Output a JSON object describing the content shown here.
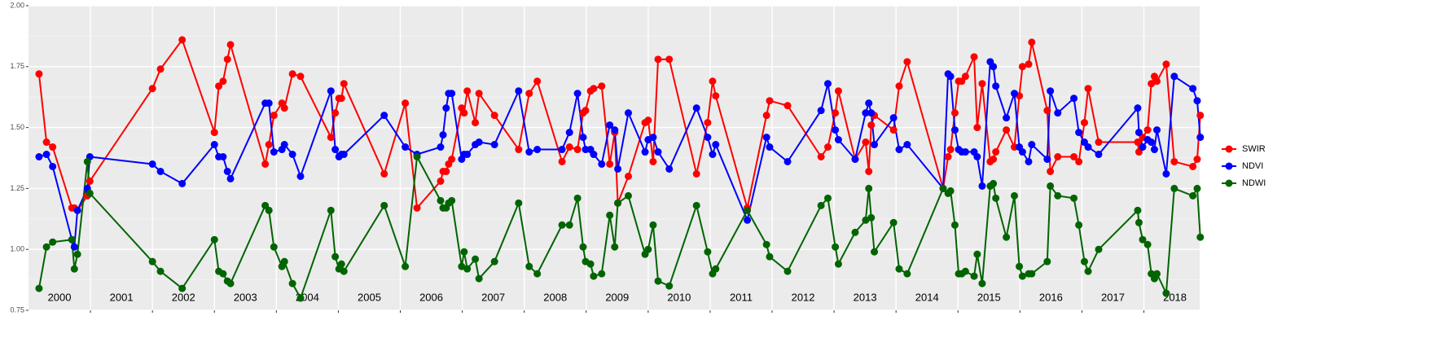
{
  "chart_data": {
    "type": "line",
    "x": [
      2000.17,
      2000.29,
      2000.39,
      2000.7,
      2000.74,
      2000.79,
      2000.95,
      2000.99,
      2002.0,
      2002.13,
      2002.48,
      2003.0,
      2003.07,
      2003.14,
      2003.21,
      2003.26,
      2003.82,
      2003.88,
      2003.96,
      2004.09,
      2004.13,
      2004.26,
      2004.39,
      2004.88,
      2004.95,
      2005.01,
      2005.05,
      2005.09,
      2005.74,
      2006.08,
      2006.27,
      2006.65,
      2006.69,
      2006.74,
      2006.78,
      2006.83,
      2006.99,
      2007.03,
      2007.08,
      2007.21,
      2007.27,
      2007.52,
      2007.91,
      2008.08,
      2008.21,
      2008.61,
      2008.73,
      2008.86,
      2008.95,
      2008.99,
      2009.07,
      2009.12,
      2009.25,
      2009.38,
      2009.46,
      2009.51,
      2009.68,
      2009.95,
      2010.0,
      2010.08,
      2010.16,
      2010.34,
      2010.78,
      2010.96,
      2011.04,
      2011.09,
      2011.6,
      2011.91,
      2011.96,
      2012.25,
      2012.79,
      2012.9,
      2013.02,
      2013.07,
      2013.34,
      2013.51,
      2013.56,
      2013.6,
      2013.65,
      2013.96,
      2014.05,
      2014.18,
      2014.76,
      2014.84,
      2014.88,
      2014.95,
      2015.01,
      2015.06,
      2015.12,
      2015.26,
      2015.31,
      2015.39,
      2015.52,
      2015.57,
      2015.61,
      2015.78,
      2015.91,
      2015.99,
      2016.04,
      2016.14,
      2016.19,
      2016.44,
      2016.49,
      2016.61,
      2016.87,
      2016.95,
      2017.04,
      2017.1,
      2017.27,
      2017.9,
      2017.92,
      2017.98,
      2018.06,
      2018.12,
      2018.17,
      2018.21,
      2018.36,
      2018.49,
      2018.79,
      2018.86,
      2018.91
    ],
    "series": [
      {
        "name": "SWIR",
        "color": "#ff0000",
        "values": [
          1.72,
          1.44,
          1.42,
          1.17,
          1.17,
          1.16,
          1.22,
          1.28,
          1.66,
          1.74,
          1.86,
          1.48,
          1.67,
          1.69,
          1.78,
          1.84,
          1.35,
          1.43,
          1.55,
          1.6,
          1.58,
          1.72,
          1.71,
          1.46,
          1.56,
          1.62,
          1.62,
          1.68,
          1.31,
          1.6,
          1.17,
          1.28,
          1.32,
          1.32,
          1.35,
          1.37,
          1.58,
          1.56,
          1.65,
          1.52,
          1.64,
          1.55,
          1.41,
          1.64,
          1.69,
          1.36,
          1.42,
          1.41,
          1.56,
          1.57,
          1.65,
          1.66,
          1.67,
          1.35,
          1.48,
          1.19,
          1.3,
          1.52,
          1.53,
          1.36,
          1.78,
          1.78,
          1.31,
          1.52,
          1.69,
          1.63,
          1.17,
          1.55,
          1.61,
          1.59,
          1.38,
          1.42,
          1.56,
          1.65,
          1.37,
          1.44,
          1.32,
          1.51,
          1.55,
          1.49,
          1.67,
          1.77,
          1.25,
          1.38,
          1.41,
          1.56,
          1.69,
          1.69,
          1.71,
          1.79,
          1.5,
          1.68,
          1.36,
          1.37,
          1.4,
          1.49,
          1.42,
          1.63,
          1.75,
          1.76,
          1.85,
          1.57,
          1.32,
          1.38,
          1.38,
          1.36,
          1.52,
          1.66,
          1.44,
          1.44,
          1.4,
          1.46,
          1.49,
          1.68,
          1.71,
          1.69,
          1.76,
          1.36,
          1.34,
          1.37,
          1.55
        ]
      },
      {
        "name": "NDVI",
        "color": "#0000ff",
        "values": [
          1.38,
          1.39,
          1.34,
          1.04,
          1.01,
          1.16,
          1.25,
          1.38,
          1.35,
          1.32,
          1.27,
          1.43,
          1.38,
          1.38,
          1.32,
          1.29,
          1.6,
          1.6,
          1.4,
          1.41,
          1.43,
          1.39,
          1.3,
          1.65,
          1.41,
          1.38,
          1.39,
          1.39,
          1.55,
          1.42,
          1.39,
          1.42,
          1.47,
          1.58,
          1.64,
          1.64,
          1.37,
          1.39,
          1.39,
          1.43,
          1.44,
          1.43,
          1.65,
          1.4,
          1.41,
          1.41,
          1.48,
          1.64,
          1.46,
          1.41,
          1.41,
          1.39,
          1.35,
          1.51,
          1.49,
          1.33,
          1.56,
          1.4,
          1.45,
          1.46,
          1.4,
          1.33,
          1.58,
          1.46,
          1.39,
          1.43,
          1.12,
          1.46,
          1.42,
          1.36,
          1.57,
          1.68,
          1.49,
          1.45,
          1.37,
          1.56,
          1.6,
          1.56,
          1.43,
          1.54,
          1.41,
          1.43,
          1.25,
          1.72,
          1.71,
          1.49,
          1.41,
          1.4,
          1.4,
          1.4,
          1.38,
          1.26,
          1.77,
          1.75,
          1.67,
          1.54,
          1.64,
          1.42,
          1.4,
          1.36,
          1.43,
          1.37,
          1.65,
          1.56,
          1.62,
          1.48,
          1.44,
          1.42,
          1.39,
          1.58,
          1.48,
          1.42,
          1.45,
          1.44,
          1.41,
          1.49,
          1.31,
          1.71,
          1.66,
          1.61,
          1.46
        ]
      },
      {
        "name": "NDWI",
        "color": "#006400",
        "values": [
          0.84,
          1.01,
          1.03,
          1.04,
          0.92,
          0.98,
          1.36,
          1.23,
          0.95,
          0.91,
          0.84,
          1.04,
          0.91,
          0.9,
          0.87,
          0.86,
          1.18,
          1.16,
          1.01,
          0.93,
          0.95,
          0.86,
          0.8,
          1.16,
          0.97,
          0.92,
          0.94,
          0.91,
          1.18,
          0.93,
          1.38,
          1.2,
          1.17,
          1.17,
          1.19,
          1.2,
          0.93,
          0.99,
          0.92,
          0.96,
          0.88,
          0.95,
          1.19,
          0.93,
          0.9,
          1.1,
          1.1,
          1.21,
          1.01,
          0.95,
          0.94,
          0.89,
          0.9,
          1.14,
          1.01,
          1.19,
          1.22,
          0.98,
          1.0,
          1.1,
          0.87,
          0.85,
          1.18,
          0.99,
          0.9,
          0.92,
          1.16,
          1.02,
          0.97,
          0.91,
          1.18,
          1.21,
          1.01,
          0.94,
          1.07,
          1.12,
          1.25,
          1.13,
          0.99,
          1.11,
          0.92,
          0.9,
          1.25,
          1.23,
          1.24,
          1.1,
          0.9,
          0.9,
          0.91,
          0.89,
          0.98,
          0.86,
          1.26,
          1.27,
          1.21,
          1.05,
          1.22,
          0.93,
          0.89,
          0.9,
          0.9,
          0.95,
          1.26,
          1.22,
          1.21,
          1.1,
          0.95,
          0.91,
          1.0,
          1.16,
          1.11,
          1.04,
          1.02,
          0.9,
          0.88,
          0.9,
          0.82,
          1.25,
          1.22,
          1.25,
          1.05
        ]
      }
    ],
    "xlim": [
      2000,
      2018.9
    ],
    "xticks": [
      2001,
      2002,
      2003,
      2004,
      2005,
      2006,
      2007,
      2008,
      2009,
      2010,
      2011,
      2012,
      2013,
      2014,
      2015,
      2016,
      2017,
      2018
    ],
    "ylim": [
      0.75,
      2.0
    ],
    "yticks": [
      0.75,
      {
        "value": 1,
        "label": "1.00"
      },
      1.25,
      {
        "value": 1.5,
        "label": "1.50"
      },
      1.75,
      {
        "value": 2,
        "label": "2.00"
      }
    ],
    "grid": true,
    "legend": "right",
    "annotations": [
      {
        "text": "2000",
        "x": 2000.5
      },
      {
        "text": "2001",
        "x": 2001.5
      },
      {
        "text": "2002",
        "x": 2002.5
      },
      {
        "text": "2003",
        "x": 2003.5
      },
      {
        "text": "2004",
        "x": 2004.5
      },
      {
        "text": "2005",
        "x": 2005.5
      },
      {
        "text": "2006",
        "x": 2006.5
      },
      {
        "text": "2007",
        "x": 2007.5
      },
      {
        "text": "2008",
        "x": 2008.5
      },
      {
        "text": "2009",
        "x": 2009.5
      },
      {
        "text": "2010",
        "x": 2010.5
      },
      {
        "text": "2011",
        "x": 2011.5
      },
      {
        "text": "2012",
        "x": 2012.5
      },
      {
        "text": "2013",
        "x": 2013.5
      },
      {
        "text": "2014",
        "x": 2014.5
      },
      {
        "text": "2015",
        "x": 2015.5
      },
      {
        "text": "2016",
        "x": 2016.5
      },
      {
        "text": "2017",
        "x": 2017.5
      },
      {
        "text": "2018",
        "x": 2018.5
      }
    ]
  }
}
